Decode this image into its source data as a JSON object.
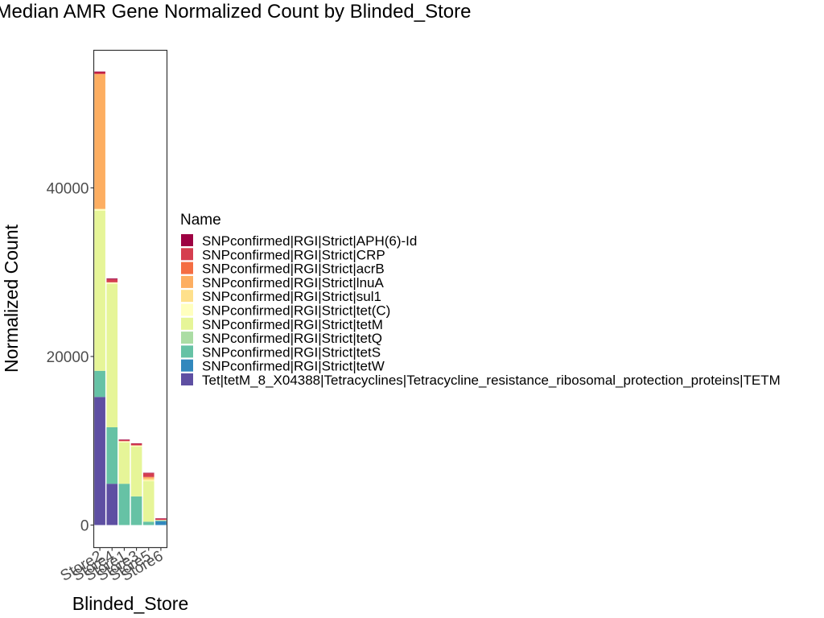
{
  "chart_data": {
    "type": "bar",
    "stacked": true,
    "title": "Median AMR Gene Normalized Count by Blinded_Store",
    "xlabel": "Blinded_Store",
    "ylabel": "Normalized Count",
    "ylim": [
      0,
      56000
    ],
    "yticks": [
      0,
      20000,
      40000
    ],
    "ytick_labels": [
      "0",
      "20000",
      "40000"
    ],
    "grid": false,
    "legend": {
      "title": "Name",
      "position": "right"
    },
    "categories": [
      "Store2",
      "Store4",
      "Store1",
      "Store3",
      "Store5",
      "Store6"
    ],
    "series": [
      {
        "name": "Tet|tetM_8_X04388|Tetracyclines|Tetracycline_resistance_ribosomal_protection_proteins|TETM",
        "color": "#5E4FA2",
        "values": [
          15200,
          4900,
          0,
          0,
          0,
          0
        ]
      },
      {
        "name": "SNPconfirmed|RGI|Strict|tetW",
        "color": "#3288BD",
        "values": [
          0,
          0,
          0,
          0,
          0,
          450
        ]
      },
      {
        "name": "SNPconfirmed|RGI|Strict|tetS",
        "color": "#66C2A5",
        "values": [
          3100,
          6700,
          4900,
          3400,
          400,
          100
        ]
      },
      {
        "name": "SNPconfirmed|RGI|Strict|tetQ",
        "color": "#ABDDA4",
        "values": [
          0,
          0,
          0,
          0,
          0,
          0
        ]
      },
      {
        "name": "SNPconfirmed|RGI|Strict|tetM",
        "color": "#E6F598",
        "values": [
          19000,
          17000,
          4900,
          5900,
          4800,
          0
        ]
      },
      {
        "name": "SNPconfirmed|RGI|Strict|tet(C)",
        "color": "#FFFFBF",
        "values": [
          200,
          200,
          150,
          150,
          100,
          50
        ]
      },
      {
        "name": "SNPconfirmed|RGI|Strict|sul1",
        "color": "#FEE08B",
        "values": [
          0,
          0,
          0,
          0,
          200,
          0
        ]
      },
      {
        "name": "SNPconfirmed|RGI|Strict|lnuA",
        "color": "#FDAE61",
        "values": [
          16000,
          0,
          0,
          0,
          200,
          0
        ]
      },
      {
        "name": "SNPconfirmed|RGI|Strict|acrB",
        "color": "#F46D43",
        "values": [
          0,
          0,
          0,
          0,
          0,
          0
        ]
      },
      {
        "name": "SNPconfirmed|RGI|Strict|CRP",
        "color": "#D53E4F",
        "values": [
          200,
          350,
          150,
          200,
          450,
          150
        ]
      },
      {
        "name": "SNPconfirmed|RGI|Strict|APH(6)-Id",
        "color": "#9E0142",
        "values": [
          100,
          100,
          50,
          50,
          50,
          50
        ]
      }
    ]
  }
}
